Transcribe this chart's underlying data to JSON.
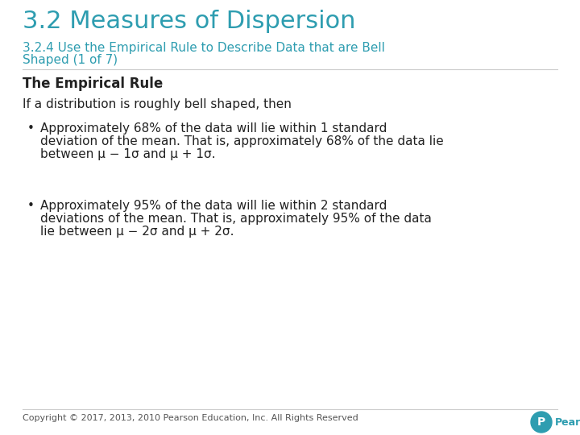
{
  "bg_color": "#ffffff",
  "title": "3.2 Measures of Dispersion",
  "title_color": "#2E9DB0",
  "title_fontsize": 22,
  "subtitle_line1": "3.2.4 Use the Empirical Rule to Describe Data that are Bell",
  "subtitle_line2": "Shaped (1 of 7)",
  "subtitle_color": "#2E9DB0",
  "subtitle_fontsize": 11,
  "section_title": "The Empirical Rule",
  "section_title_fontsize": 12,
  "section_title_color": "#222222",
  "intro_text": "If a distribution is roughly bell shaped, then",
  "intro_fontsize": 11,
  "intro_color": "#222222",
  "bullet1_lines": [
    "Approximately 68% of the data will lie within 1 standard",
    "deviation of the mean. That is, approximately 68% of the data lie",
    "between μ − 1σ and μ + 1σ."
  ],
  "bullet2_lines": [
    "Approximately 95% of the data will lie within 2 standard",
    "deviations of the mean. That is, approximately 95% of the data",
    "lie between μ − 2σ and μ + 2σ."
  ],
  "bullet_fontsize": 11,
  "bullet_color": "#222222",
  "footer_text": "Copyright © 2017, 2013, 2010 Pearson Education, Inc. All Rights Reserved",
  "footer_color": "#555555",
  "footer_fontsize": 8,
  "divider_color": "#cccccc",
  "pearson_color": "#2E9DB0",
  "pearson_label": "Pearson"
}
